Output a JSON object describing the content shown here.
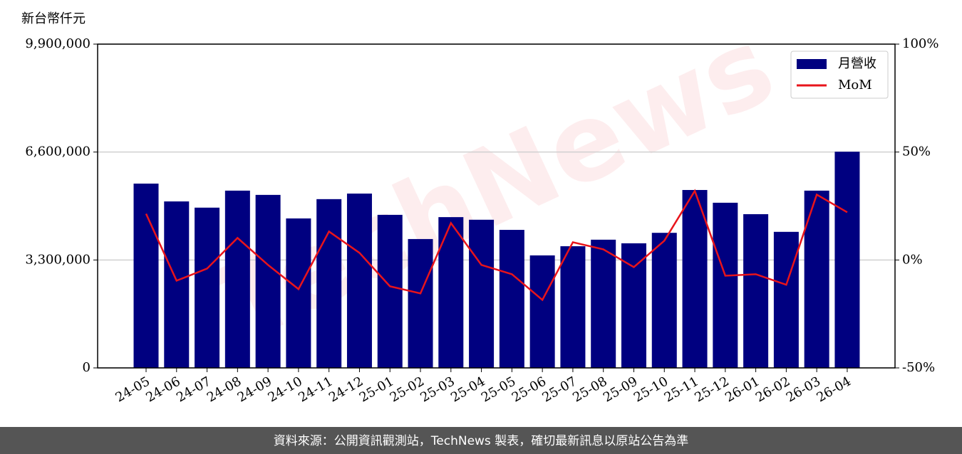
{
  "chart_data": {
    "type": "bar",
    "y_label": "新台幣仟元",
    "watermark": "TechNews",
    "source": "資料來源：公開資訊觀測站，TechNews 製表，確切最新訊息以原站公告為準",
    "categories": [
      "24-05",
      "24-06",
      "24-07",
      "24-08",
      "24-09",
      "24-10",
      "24-11",
      "24-12",
      "25-01",
      "25-02",
      "25-03",
      "25-04",
      "25-05",
      "25-06",
      "25-07",
      "25-08",
      "25-09",
      "25-10",
      "25-11",
      "25-12",
      "26-01",
      "26-02",
      "26-03",
      "26-04"
    ],
    "series": [
      {
        "name": "月營收",
        "type": "bar",
        "color": "#000080",
        "values": [
          5635000,
          5090000,
          4900000,
          5420000,
          5290000,
          4570000,
          5160000,
          5330000,
          4680000,
          3940000,
          4610000,
          4530000,
          4220000,
          3440000,
          3720000,
          3920000,
          3810000,
          4130000,
          5440000,
          5050000,
          4700000,
          4160000,
          5420000,
          6610000
        ]
      },
      {
        "name": "MoM",
        "type": "line",
        "color": "#e8141b",
        "axis": "y2",
        "values": [
          21.4,
          -9.6,
          -4.0,
          10.2,
          -2.3,
          -13.5,
          13.2,
          3.3,
          -12.2,
          -15.5,
          17.1,
          -2.3,
          -6.6,
          -18.5,
          8.2,
          4.9,
          -3.3,
          8.9,
          32.0,
          -7.3,
          -6.6,
          -11.5,
          30.3,
          22.1
        ]
      }
    ],
    "ylim": [
      0,
      9900000
    ],
    "yticks": [
      0,
      {
        "value": 3300000,
        "label": "3,300,000"
      },
      {
        "value": 6600000,
        "label": "6,600,000"
      },
      {
        "value": 9900000,
        "label": "9,900,000"
      }
    ],
    "y2lim": [
      -50,
      100
    ],
    "y2ticks": [
      {
        "value": -50,
        "label": "-50%"
      },
      {
        "value": 0,
        "label": "0%"
      },
      {
        "value": 50,
        "label": "50%"
      },
      {
        "value": 100,
        "label": "100%"
      }
    ],
    "grid": true,
    "legend": "upper right"
  }
}
